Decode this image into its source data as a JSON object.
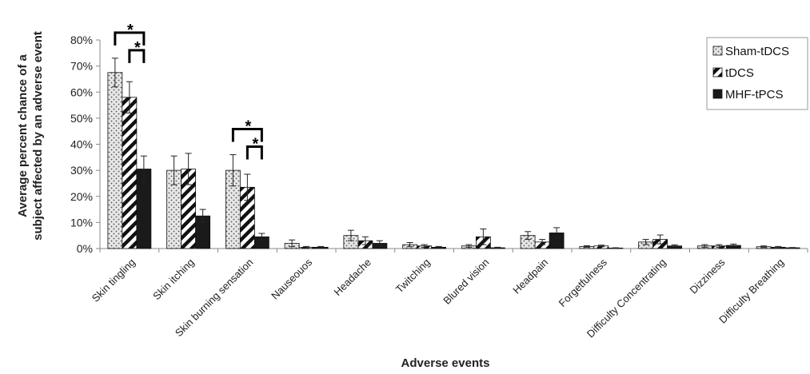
{
  "chart_data": {
    "type": "bar",
    "title": "",
    "xlabel": "Adverse events",
    "ylabel_lines": [
      "Average percent chance of a",
      "subject affected by an adverse event"
    ],
    "ylim": [
      0,
      80
    ],
    "yticks": [
      0,
      10,
      20,
      30,
      40,
      50,
      60,
      70,
      80
    ],
    "ytick_labels": [
      "0%",
      "10%",
      "20%",
      "30%",
      "40%",
      "50%",
      "60%",
      "70%",
      "80%"
    ],
    "grid": false,
    "legend_position": "top-right",
    "categories": [
      "Skin tingling",
      "Skin itching",
      "Skin burning sensation",
      "Nauseouos",
      "Headache",
      "Twitching",
      "Blured vision",
      "Headpain",
      "Forgetfulness",
      "Difficulty Concentrating",
      "Dizziness",
      "Difficulty Breathing"
    ],
    "series": [
      {
        "name": "Sham-tDCS",
        "pattern": "dots",
        "values": [
          67.5,
          30,
          30,
          2,
          5,
          1.5,
          1,
          5,
          0.8,
          2.5,
          1,
          0.7
        ],
        "errors": [
          5.5,
          5.5,
          6,
          1.3,
          2,
          0.8,
          0.5,
          1.5,
          0.3,
          1,
          0.5,
          0.3
        ]
      },
      {
        "name": "tDCS",
        "pattern": "stripes",
        "values": [
          58,
          30.5,
          23.5,
          0.5,
          3,
          1,
          4.5,
          2.5,
          1,
          3.5,
          1,
          0.5
        ],
        "errors": [
          6,
          6,
          5,
          0.3,
          1.5,
          0.5,
          3,
          1,
          0.3,
          1.7,
          0.5,
          0.3
        ]
      },
      {
        "name": "MHF-tPCS",
        "pattern": "solid",
        "values": [
          30.5,
          12.5,
          4.5,
          0.5,
          2,
          0.5,
          0.3,
          6,
          0.2,
          1,
          1.2,
          0.3
        ],
        "errors": [
          5,
          2.5,
          1.3,
          0.3,
          1,
          0.3,
          0.2,
          2,
          0.1,
          0.4,
          0.5,
          0.1
        ]
      }
    ],
    "significance": [
      {
        "category": "Skin tingling",
        "from": "Sham-tDCS",
        "to": "MHF-tPCS",
        "label": "*"
      },
      {
        "category": "Skin tingling",
        "from": "tDCS",
        "to": "MHF-tPCS",
        "label": "*"
      },
      {
        "category": "Skin burning sensation",
        "from": "Sham-tDCS",
        "to": "MHF-tPCS",
        "label": "*"
      },
      {
        "category": "Skin burning sensation",
        "from": "tDCS",
        "to": "MHF-tPCS",
        "label": "*"
      }
    ]
  }
}
